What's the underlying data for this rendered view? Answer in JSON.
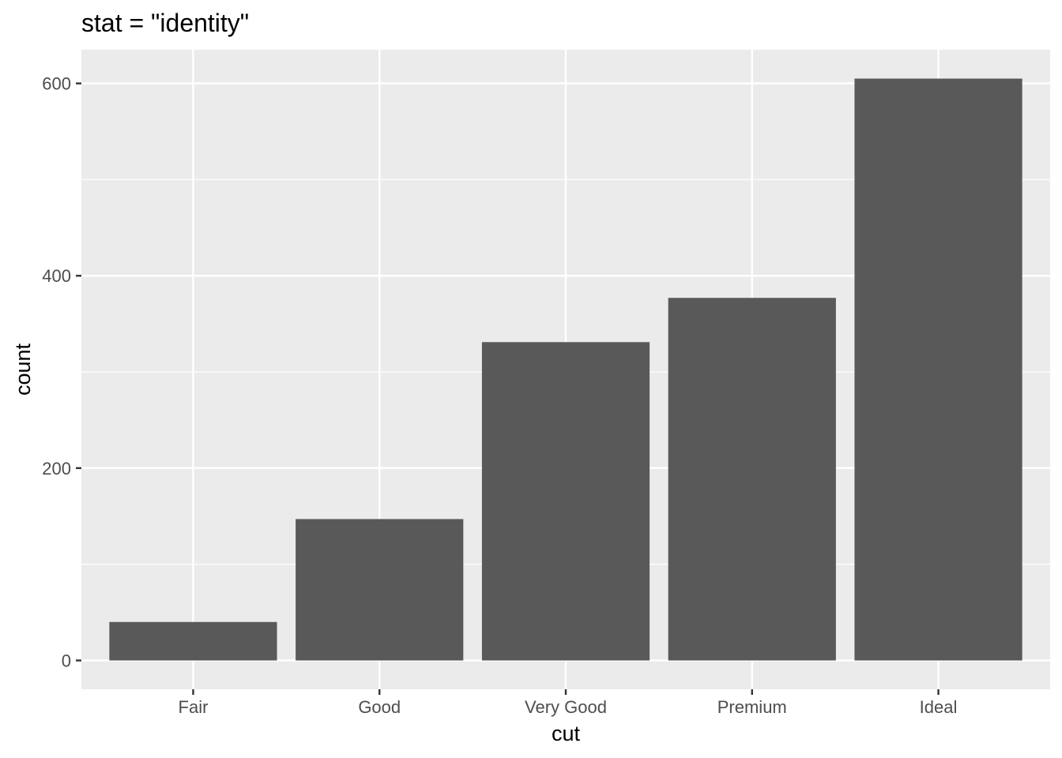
{
  "chart_data": {
    "type": "bar",
    "title": "stat = \"identity\"",
    "xlabel": "cut",
    "ylabel": "count",
    "categories": [
      "Fair",
      "Good",
      "Very Good",
      "Premium",
      "Ideal"
    ],
    "values": [
      40,
      147,
      331,
      377,
      605
    ],
    "ylim": [
      -30,
      635
    ],
    "yticks": [
      0,
      200,
      400,
      600
    ],
    "grid": true,
    "legend": "none",
    "colors": {
      "panel": "#ebebeb",
      "grid": "#ffffff",
      "bar": "#595959",
      "tick": "#333333",
      "tick_label": "#4d4d4d"
    }
  }
}
